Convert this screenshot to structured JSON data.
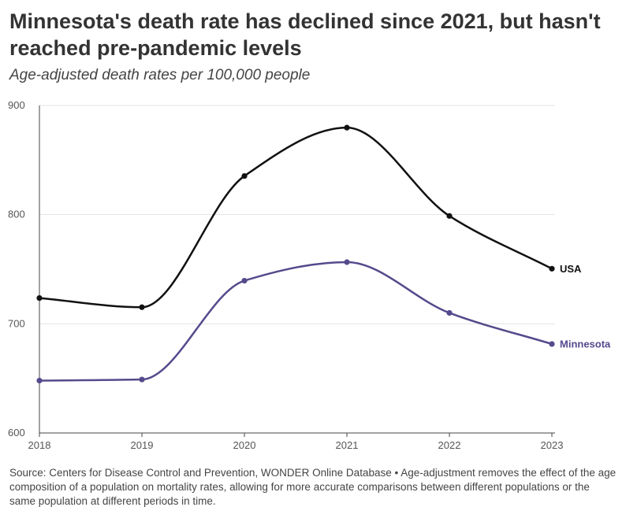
{
  "chart_data": {
    "type": "line",
    "title": "Minnesota's death rate has declined since 2021, but hasn't reached pre-pandemic levels",
    "subtitle": "Age-adjusted death rates per 100,000 people",
    "xlabel": "",
    "ylabel": "",
    "x": [
      2018,
      2019,
      2020,
      2021,
      2022,
      2023
    ],
    "ylim": [
      600,
      900
    ],
    "yticks": [
      600,
      700,
      800,
      900
    ],
    "grid": true,
    "series": [
      {
        "name": "USA",
        "color": "#111111",
        "values": [
          723.6,
          715.2,
          835.4,
          879.7,
          798.8,
          750.5
        ]
      },
      {
        "name": "Minnesota",
        "color": "#544a8c",
        "values": [
          648.0,
          649.0,
          739.5,
          756.5,
          710.0,
          681.5
        ]
      }
    ]
  },
  "source": "Source: Centers for Disease Control and Prevention, WONDER Online Database • Age-adjustment removes the effect of the age composition of a population on mortality rates, allowing for more accurate comparisons between different populations or the same population at different periods in time."
}
